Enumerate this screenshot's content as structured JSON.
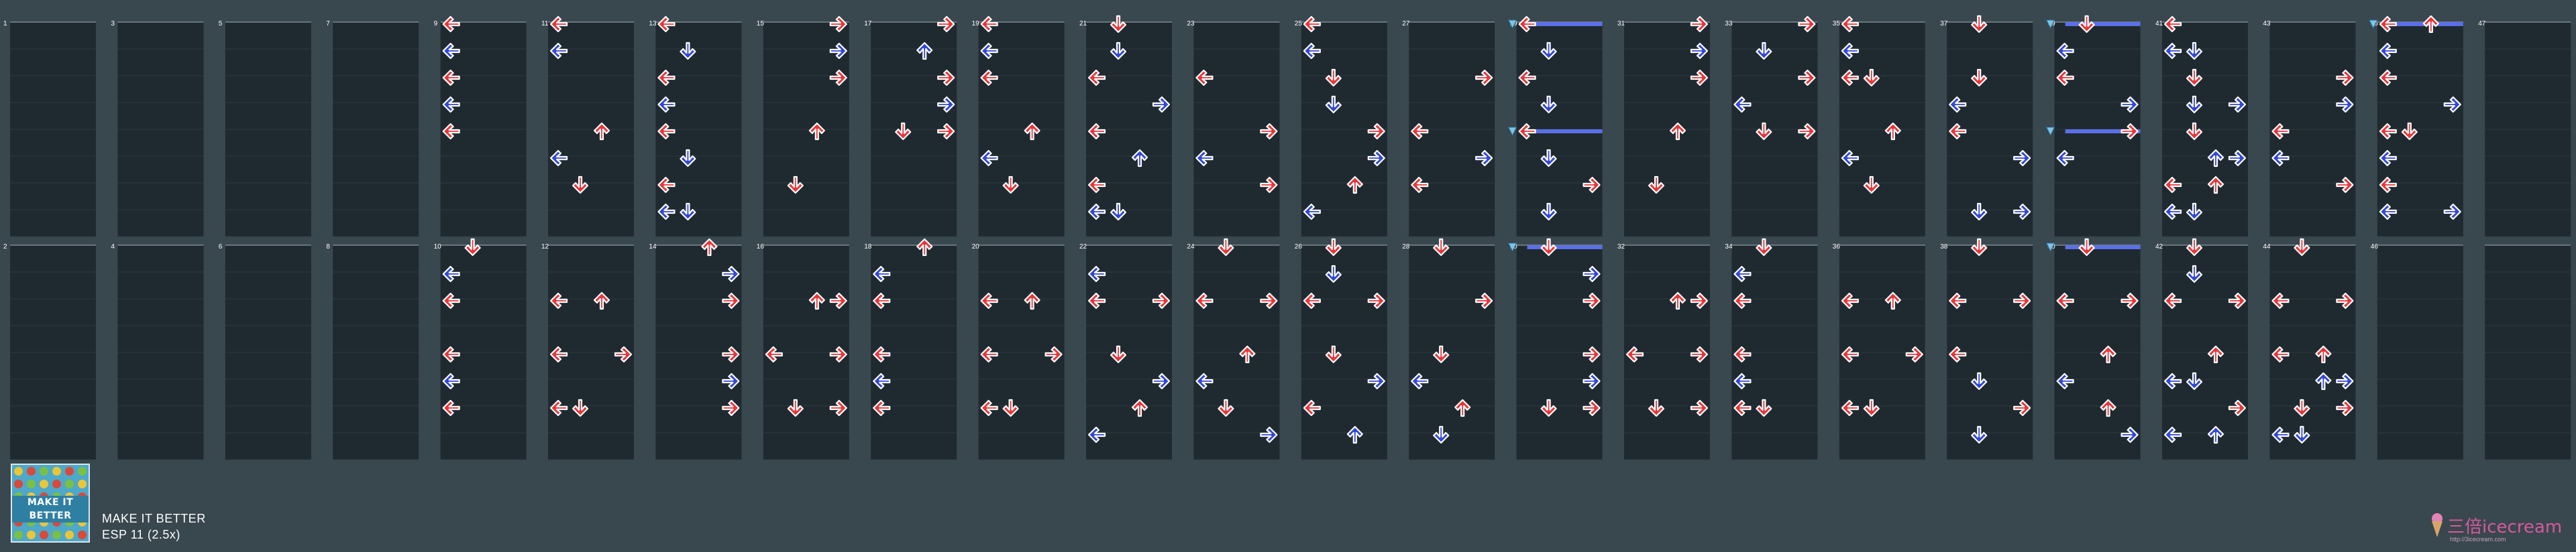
{
  "song": {
    "title": "MAKE IT BETTER",
    "difficulty": "ESP 11 (2.5x)",
    "jacket_text": "MAKE IT BETTER"
  },
  "brand": {
    "name": "三倍icecream",
    "url": "http://3icecream.com",
    "logo_icon": "icecream-icon"
  },
  "colors": {
    "background": "#39474f",
    "lane": "#1f2a30",
    "red_arrow": "#e8353a",
    "blue_arrow": "#3347d6",
    "freeze": "#5b6fe8",
    "measure_line": "#8a99a1"
  },
  "lanes": [
    "L",
    "D",
    "U",
    "R"
  ],
  "measures": {
    "1": [],
    "2": [],
    "3": [],
    "4": [],
    "5": [],
    "6": [],
    "7": [],
    "8": [],
    "9": [
      [
        "L"
      ],
      [
        "L"
      ],
      [
        "L"
      ],
      [
        "L"
      ],
      [
        "L"
      ],
      [],
      [],
      []
    ],
    "10": [
      [
        "D"
      ],
      [
        "L"
      ],
      [
        "L"
      ],
      [],
      [
        "L"
      ],
      [
        "L"
      ],
      [
        "L"
      ],
      []
    ],
    "11": [
      [
        "L"
      ],
      [
        "L"
      ],
      [],
      [],
      [
        "U"
      ],
      [
        "L"
      ],
      [
        "D"
      ],
      []
    ],
    "12": [
      [],
      [],
      [
        "L",
        "U"
      ],
      [],
      [
        "L",
        "R"
      ],
      [],
      [
        "L",
        "D"
      ],
      []
    ],
    "13": [
      [
        "L"
      ],
      [
        "D"
      ],
      [
        "L"
      ],
      [
        "L"
      ],
      [
        "L"
      ],
      [
        "D"
      ],
      [
        "L"
      ],
      [
        "L",
        "D"
      ]
    ],
    "14": [
      [
        "U"
      ],
      [
        "R"
      ],
      [
        "R"
      ],
      [],
      [
        "R"
      ],
      [
        "R"
      ],
      [
        "R"
      ],
      []
    ],
    "15": [
      [
        "R"
      ],
      [
        "R"
      ],
      [
        "R"
      ],
      [],
      [
        "U"
      ],
      [],
      [
        "D"
      ],
      []
    ],
    "16": [
      [],
      [],
      [
        "U",
        "R"
      ],
      [],
      [
        "L",
        "R"
      ],
      [],
      [
        "D",
        "R"
      ],
      []
    ],
    "17": [
      [
        "R"
      ],
      [
        "U"
      ],
      [
        "R"
      ],
      [
        "R"
      ],
      [
        "D",
        "R"
      ],
      [],
      [],
      []
    ],
    "18": [
      [
        "U"
      ],
      [
        "L"
      ],
      [
        "L"
      ],
      [],
      [
        "L"
      ],
      [
        "L"
      ],
      [
        "L"
      ],
      []
    ],
    "19": [
      [
        "L"
      ],
      [
        "L"
      ],
      [
        "L"
      ],
      [],
      [
        "U"
      ],
      [
        "L"
      ],
      [
        "D"
      ],
      []
    ],
    "20": [
      [],
      [],
      [
        "L",
        "U"
      ],
      [],
      [
        "L",
        "R"
      ],
      [],
      [
        "L",
        "D"
      ],
      []
    ],
    "21": [
      [
        "D"
      ],
      [
        "D"
      ],
      [
        "L"
      ],
      [
        "R"
      ],
      [
        "L"
      ],
      [
        "U"
      ],
      [
        "L"
      ],
      [
        "L",
        "D"
      ]
    ],
    "22": [
      [],
      [
        "L"
      ],
      [
        "L",
        "R"
      ],
      [],
      [
        "D"
      ],
      [
        "R"
      ],
      [
        "U"
      ],
      [
        "L"
      ]
    ],
    "23": [
      [],
      [],
      [
        "L"
      ],
      [],
      [
        "R"
      ],
      [
        "L"
      ],
      [
        "R"
      ],
      []
    ],
    "24": [
      [
        "D"
      ],
      [],
      [
        "L",
        "R"
      ],
      [],
      [
        "U"
      ],
      [
        "L"
      ],
      [
        "D"
      ],
      [
        "R"
      ]
    ],
    "25": [
      [
        "L"
      ],
      [
        "L"
      ],
      [
        "D"
      ],
      [
        "D"
      ],
      [
        "R"
      ],
      [
        "R"
      ],
      [
        "U"
      ],
      [
        "L"
      ]
    ],
    "26": [
      [
        "D"
      ],
      [
        "D"
      ],
      [
        "L",
        "R"
      ],
      [],
      [
        "D"
      ],
      [
        "R"
      ],
      [
        "L"
      ],
      [
        "U"
      ]
    ],
    "27": [
      [],
      [],
      [
        "R"
      ],
      [],
      [
        "L"
      ],
      [
        "R"
      ],
      [
        "L"
      ],
      []
    ],
    "28": [
      [
        "D"
      ],
      [],
      [
        "R"
      ],
      [],
      [
        "D"
      ],
      [
        "L"
      ],
      [
        "U"
      ],
      [
        "D"
      ]
    ],
    "29": [
      [
        "L"
      ],
      [
        "D"
      ],
      [
        "L"
      ],
      [
        "D"
      ],
      [
        "L"
      ],
      [
        "D"
      ],
      [
        "R"
      ],
      [
        "D"
      ]
    ],
    "30": [
      [
        "D"
      ],
      [
        "R"
      ],
      [
        "R"
      ],
      [],
      [
        "R"
      ],
      [
        "R"
      ],
      [
        "D",
        "R"
      ],
      []
    ],
    "31": [
      [
        "R"
      ],
      [
        "R"
      ],
      [
        "R"
      ],
      [],
      [
        "U"
      ],
      [],
      [
        "D"
      ],
      []
    ],
    "32": [
      [],
      [],
      [
        "U",
        "R"
      ],
      [],
      [
        "L",
        "R"
      ],
      [],
      [
        "D",
        "R"
      ],
      []
    ],
    "33": [
      [
        "R"
      ],
      [
        "D"
      ],
      [
        "R"
      ],
      [
        "L"
      ],
      [
        "D",
        "R"
      ],
      [],
      [],
      []
    ],
    "34": [
      [
        "D"
      ],
      [
        "L"
      ],
      [
        "L"
      ],
      [],
      [
        "L"
      ],
      [
        "L"
      ],
      [
        "L",
        "D"
      ],
      []
    ],
    "35": [
      [
        "L"
      ],
      [
        "L"
      ],
      [
        "L",
        "D"
      ],
      [],
      [
        "U"
      ],
      [
        "L"
      ],
      [
        "D"
      ],
      []
    ],
    "36": [
      [],
      [],
      [
        "L",
        "U"
      ],
      [],
      [
        "L",
        "R"
      ],
      [],
      [
        "L",
        "D"
      ],
      []
    ],
    "37": [
      [
        "D"
      ],
      [],
      [
        "D"
      ],
      [
        "L"
      ],
      [
        "L"
      ],
      [
        "R"
      ],
      [],
      [
        "D",
        "R"
      ]
    ],
    "38": [
      [
        "D"
      ],
      [],
      [
        "L",
        "R"
      ],
      [],
      [
        "L"
      ],
      [
        "D"
      ],
      [
        "R"
      ],
      [
        "D"
      ]
    ],
    "39": [
      [
        "D"
      ],
      [
        "L"
      ],
      [
        "L"
      ],
      [
        "R"
      ],
      [
        "R"
      ],
      [
        "L"
      ],
      []
    ],
    "40": [
      [
        "D"
      ],
      [],
      [
        "L",
        "R"
      ],
      [],
      [
        "U"
      ],
      [
        "L"
      ],
      [
        "U"
      ],
      [
        "R"
      ]
    ],
    "41": [
      [
        "L"
      ],
      [
        "L",
        "D"
      ],
      [
        "D"
      ],
      [
        "D",
        "R"
      ],
      [
        "D"
      ],
      [
        "U",
        "R"
      ],
      [
        "L",
        "U"
      ],
      [
        "L",
        "D"
      ]
    ],
    "42": [
      [
        "D"
      ],
      [
        "D"
      ],
      [
        "L",
        "R"
      ],
      [],
      [
        "U"
      ],
      [
        "L",
        "D"
      ],
      [
        "R"
      ],
      [
        "L",
        "U"
      ]
    ],
    "43": [
      [],
      [],
      [
        "R"
      ],
      [
        "R"
      ],
      [
        "L"
      ],
      [
        "L"
      ],
      [
        "R"
      ],
      []
    ],
    "44": [
      [
        "D"
      ],
      [],
      [
        "L",
        "R"
      ],
      [],
      [
        "L",
        "U"
      ],
      [
        "U",
        "R"
      ],
      [
        "D",
        "R"
      ],
      [
        "L",
        "D"
      ]
    ],
    "45": [
      [
        "L",
        "U"
      ],
      [
        "L"
      ],
      [
        "L"
      ],
      [
        "R"
      ],
      [
        "L",
        "D"
      ],
      [
        "L"
      ],
      [
        "L"
      ],
      [
        "L",
        "R"
      ]
    ],
    "46": [],
    "47": []
  },
  "freezes": [
    {
      "measure": 29,
      "beat": 0,
      "lane": "L"
    },
    {
      "measure": 29,
      "beat": 4,
      "lane": "L"
    },
    {
      "measure": 30,
      "beat": 0,
      "lane": "L"
    },
    {
      "measure": 39,
      "beat": 0,
      "lane": "L"
    },
    {
      "measure": 39,
      "beat": 4,
      "lane": "L"
    },
    {
      "measure": 40,
      "beat": 0,
      "lane": "L"
    },
    {
      "measure": 45,
      "beat": 0,
      "lane": "L"
    }
  ]
}
